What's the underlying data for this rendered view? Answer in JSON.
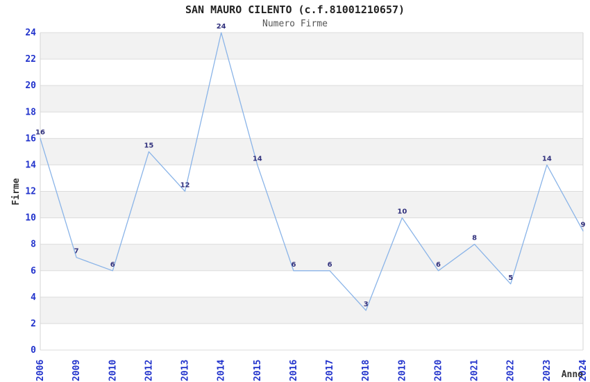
{
  "chart_data": {
    "type": "line",
    "title": "SAN MAURO CILENTO (c.f.81001210657)",
    "subtitle": "Numero Firme",
    "xlabel": "Anno",
    "ylabel": "Firme",
    "categories": [
      "2006",
      "2009",
      "2010",
      "2012",
      "2013",
      "2014",
      "2015",
      "2016",
      "2017",
      "2018",
      "2019",
      "2020",
      "2021",
      "2022",
      "2023",
      "2024"
    ],
    "values": [
      16,
      7,
      6,
      15,
      12,
      24,
      14,
      6,
      6,
      3,
      10,
      6,
      8,
      5,
      14,
      9
    ],
    "ylim": [
      0,
      24
    ],
    "ytick_step": 2,
    "grid": "horizontal alternating bands, gridline at every tick",
    "legend": "none",
    "colors": {
      "line": "#8ab4e8",
      "tick_labels": "#2233cc",
      "data_labels": "#31317d",
      "band": "#f2f2f2",
      "gridline": "#dcdcdc",
      "plot_border": "#d4d4d4",
      "title": "#222222",
      "subtitle": "#555555",
      "axis_titles": "#333333",
      "background": "#ffffff"
    }
  }
}
